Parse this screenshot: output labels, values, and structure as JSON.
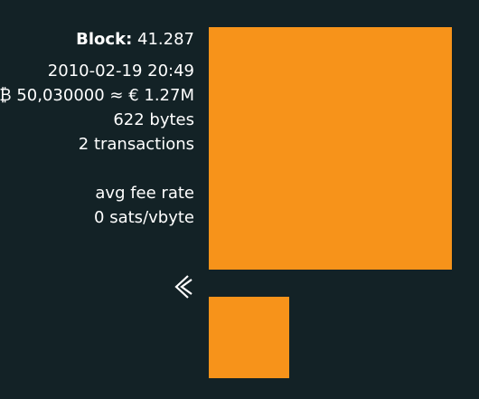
{
  "block": {
    "label": "Block:",
    "height": "41.287",
    "timestamp": "2010-02-19 20:49",
    "value_line": "₿ 50,030000 ≈ € 1.27M",
    "size": "622 bytes",
    "tx_count": "2 transactions",
    "fee_rate_label": "avg fee rate",
    "fee_rate_value": "0 sats/vbyte"
  },
  "colors": {
    "background": "#132226",
    "block_fill": "#f7931a",
    "text": "#ffffff"
  },
  "icons": {
    "back": "chevron-left-icon"
  }
}
